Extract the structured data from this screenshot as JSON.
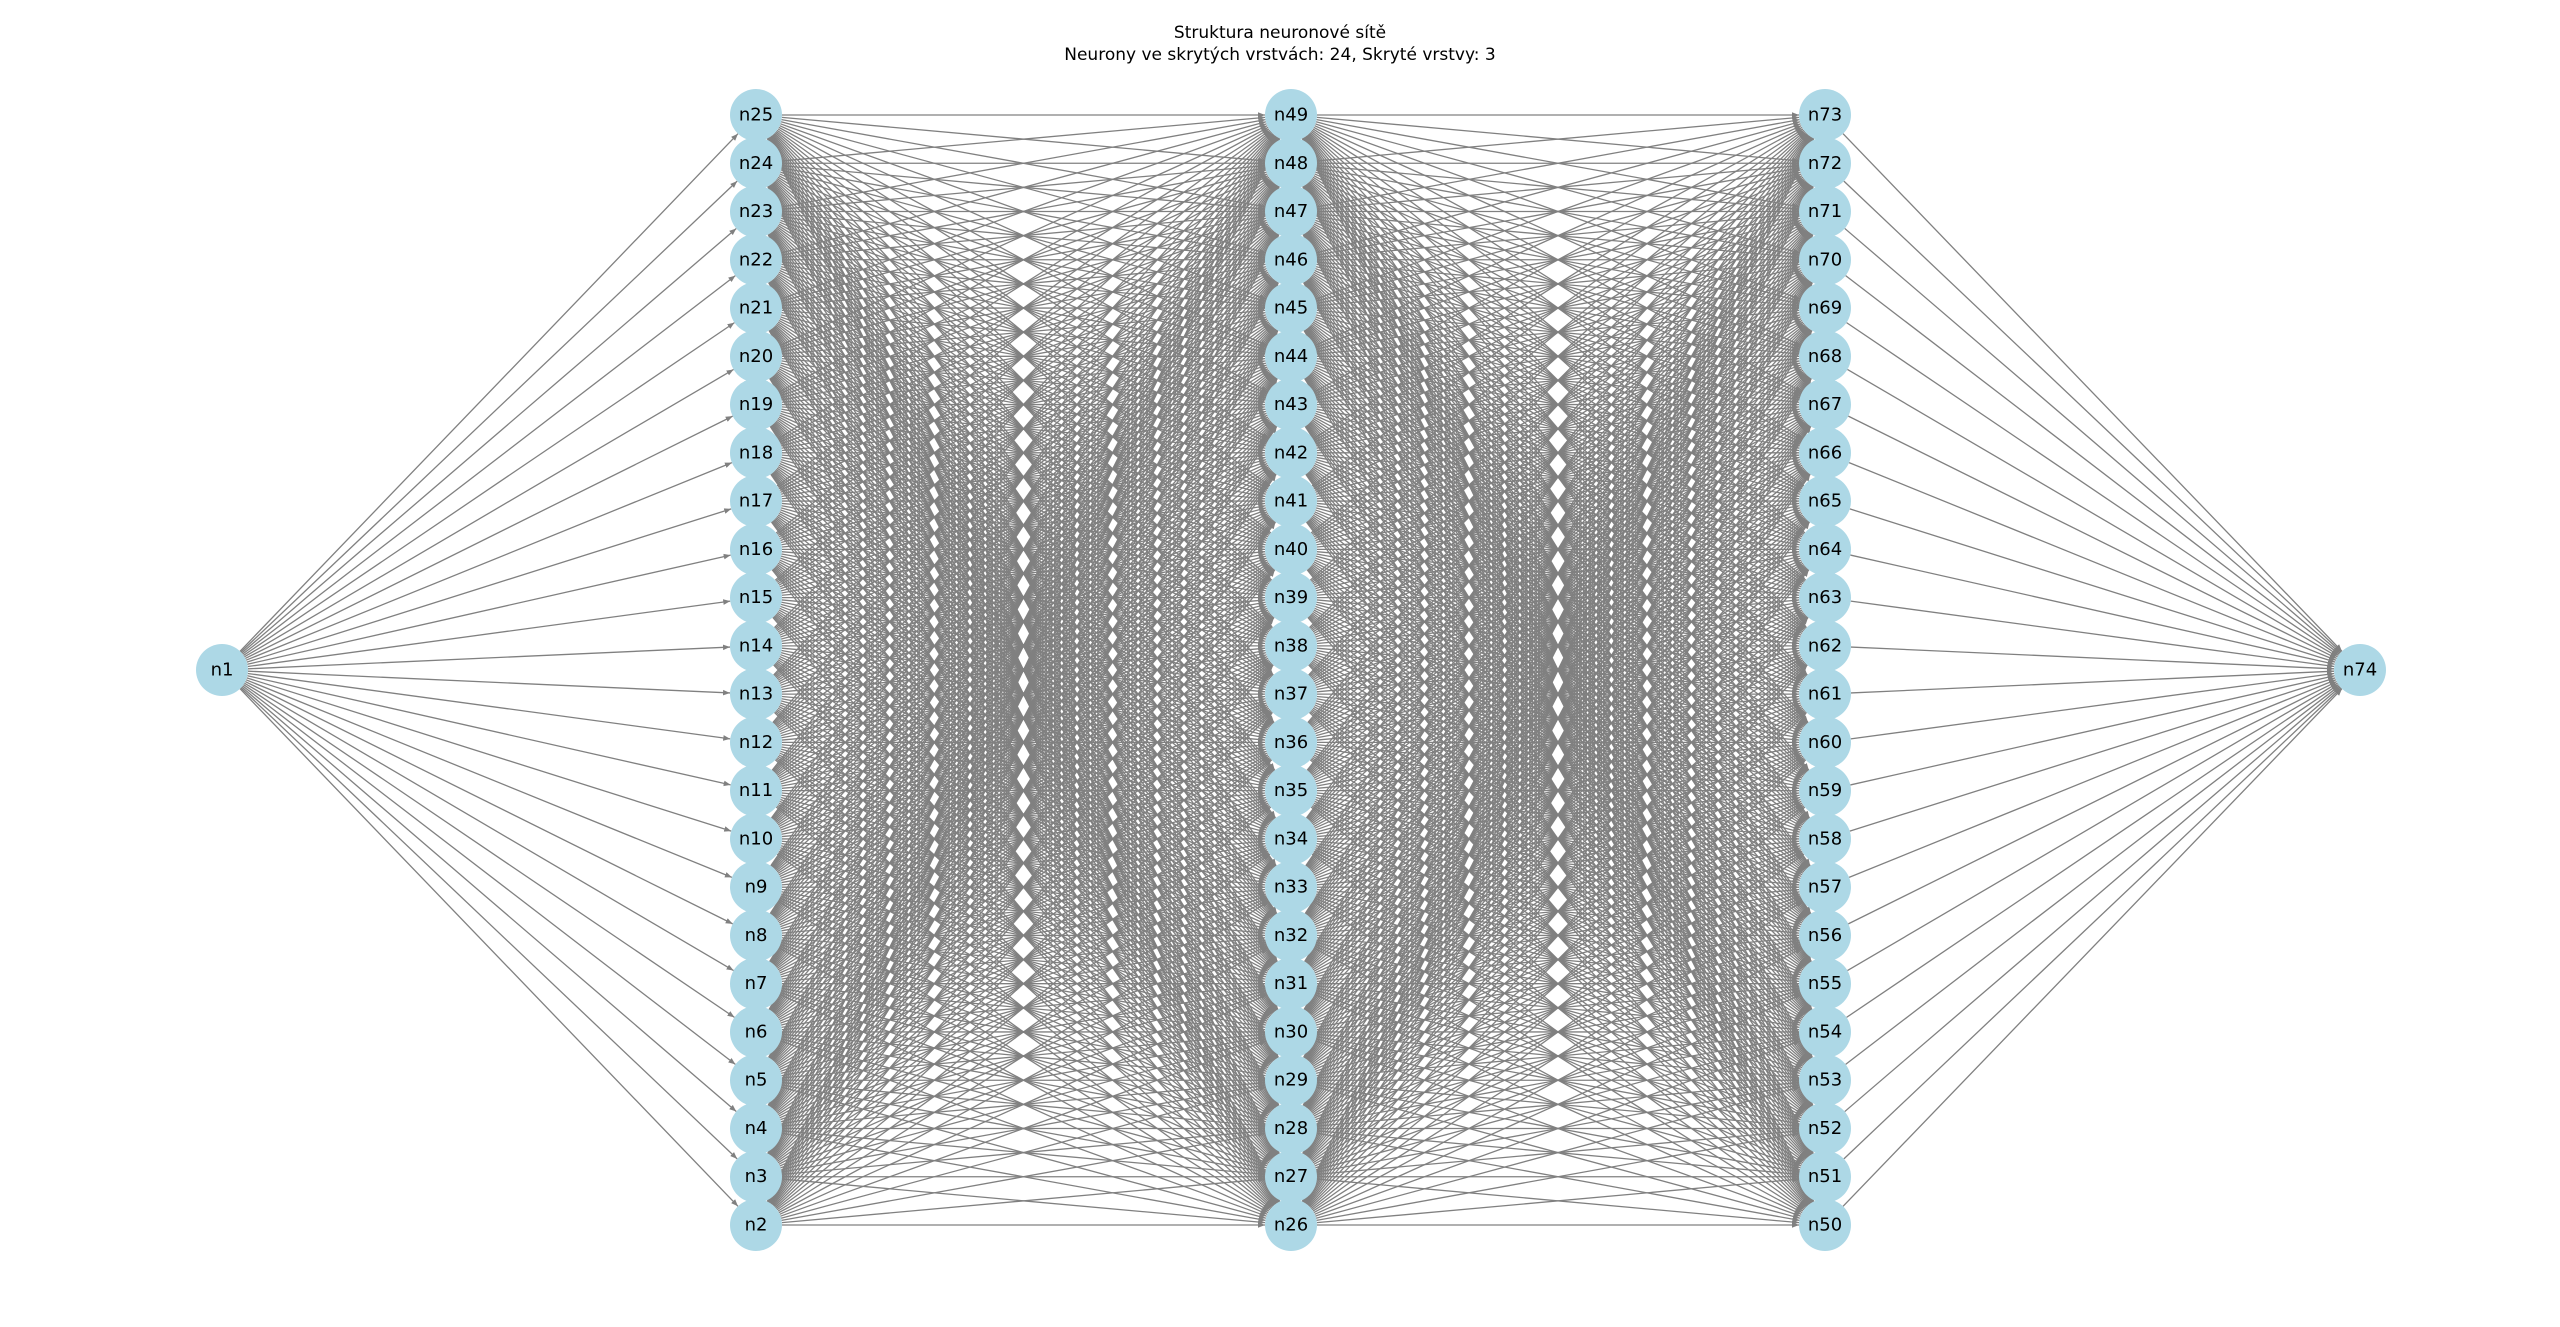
{
  "figure": {
    "title_line1": "Struktura neuronové sítě",
    "title_line2": "Neurony ve skrytých vrstvách: 24, Skryté vrstvy: 3"
  },
  "colors": {
    "node_fill": "#add8e6",
    "edge": "#808080",
    "background": "#ffffff"
  },
  "network": {
    "layers": [
      {
        "role": "input",
        "nodes_top_to_bottom": [
          "n1"
        ]
      },
      {
        "role": "hidden",
        "nodes_top_to_bottom": [
          "n25",
          "n24",
          "n23",
          "n22",
          "n21",
          "n20",
          "n19",
          "n18",
          "n17",
          "n16",
          "n15",
          "n14",
          "n13",
          "n12",
          "n11",
          "n10",
          "n9",
          "n8",
          "n7",
          "n6",
          "n5",
          "n4",
          "n3",
          "n2"
        ]
      },
      {
        "role": "hidden",
        "nodes_top_to_bottom": [
          "n49",
          "n48",
          "n47",
          "n46",
          "n45",
          "n44",
          "n43",
          "n42",
          "n41",
          "n40",
          "n39",
          "n38",
          "n37",
          "n36",
          "n35",
          "n34",
          "n33",
          "n32",
          "n31",
          "n30",
          "n29",
          "n28",
          "n27",
          "n26"
        ]
      },
      {
        "role": "hidden",
        "nodes_top_to_bottom": [
          "n73",
          "n72",
          "n71",
          "n70",
          "n69",
          "n68",
          "n67",
          "n66",
          "n65",
          "n64",
          "n63",
          "n62",
          "n61",
          "n60",
          "n59",
          "n58",
          "n57",
          "n56",
          "n55",
          "n54",
          "n53",
          "n52",
          "n51",
          "n50"
        ]
      },
      {
        "role": "output",
        "nodes_top_to_bottom": [
          "n74"
        ]
      }
    ],
    "connectivity": "fully-connected-between-adjacent-layers",
    "directed": true
  }
}
